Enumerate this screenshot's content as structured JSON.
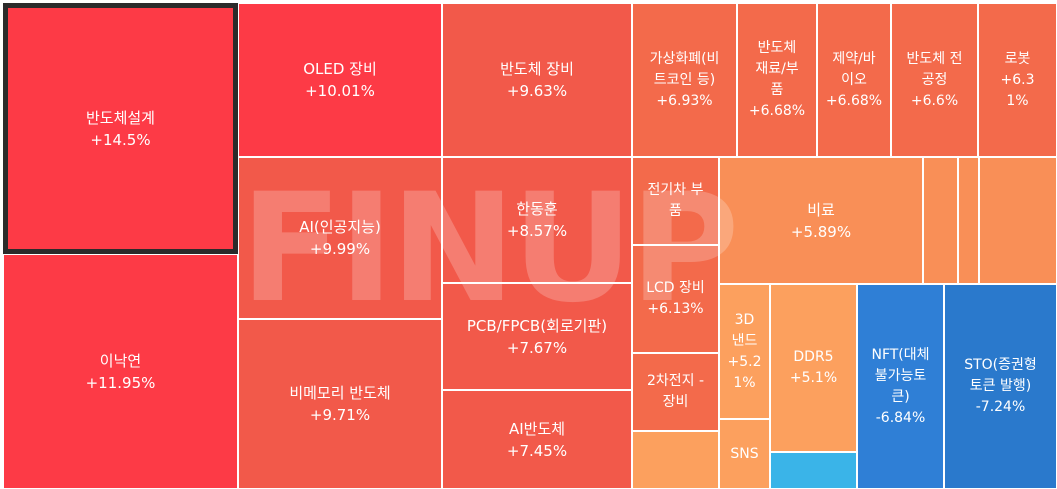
{
  "watermark": "FINUP",
  "colors": {
    "deep_red": "#fd3a46",
    "red": "#f2594a",
    "red_orange": "#f36a4b",
    "orange": "#f98f57",
    "light_orange": "#fca05e",
    "sky_blue": "#3ab4e8",
    "blue": "#2f7fd6",
    "blue_dark": "#2a79cc"
  },
  "chart_data": {
    "type": "treemap",
    "selected": "반도체설계",
    "tiles": [
      {
        "name": "반도체설계",
        "value": 14.5,
        "label": "+14.5%"
      },
      {
        "name": "이낙연",
        "value": 11.95,
        "label": "+11.95%"
      },
      {
        "name": "OLED 장비",
        "value": 10.01,
        "label": "+10.01%"
      },
      {
        "name": "AI(인공지능)",
        "value": 9.99,
        "label": "+9.99%"
      },
      {
        "name": "비메모리 반도체",
        "value": 9.71,
        "label": "+9.71%"
      },
      {
        "name": "반도체 장비",
        "value": 9.63,
        "label": "+9.63%"
      },
      {
        "name": "한동훈",
        "value": 8.57,
        "label": "+8.57%"
      },
      {
        "name": "PCB/FPCB(회로기판)",
        "value": 7.67,
        "label": "+7.67%"
      },
      {
        "name": "AI반도체",
        "value": 7.45,
        "label": "+7.45%"
      },
      {
        "name": "가상화폐(비\n트코인 등)",
        "value": 6.93,
        "label": "+6.93%"
      },
      {
        "name": "반도체\n재료/부\n품",
        "value": 6.68,
        "label": "+6.68%"
      },
      {
        "name": "제약/바\n이오",
        "value": 6.68,
        "label": "+6.68%"
      },
      {
        "name": "반도체 전\n공정",
        "value": 6.6,
        "label": "+6.6%"
      },
      {
        "name": "로봇",
        "value": 6.31,
        "label": "+6.3\n1%"
      },
      {
        "name": "전기차 부\n품",
        "value": null,
        "label": ""
      },
      {
        "name": "LCD 장비",
        "value": 6.13,
        "label": "+6.13%"
      },
      {
        "name": "2차전지 -\n장비",
        "value": null,
        "label": ""
      },
      {
        "name": "비료",
        "value": 5.89,
        "label": "+5.89%"
      },
      {
        "name": "3D\n낸드",
        "value": 5.21,
        "label": "+5.2\n1%"
      },
      {
        "name": "DDR5",
        "value": 5.1,
        "label": "+5.1%"
      },
      {
        "name": "SNS",
        "value": null,
        "label": ""
      },
      {
        "name": "NFT(대체\n불가능토\n큰)",
        "value": -6.84,
        "label": "-6.84%"
      },
      {
        "name": "STO(증권형\n토큰 발행)",
        "value": -7.24,
        "label": "-7.24%"
      },
      {
        "name": "",
        "value": null,
        "label": ""
      },
      {
        "name": "",
        "value": null,
        "label": ""
      },
      {
        "name": "",
        "value": null,
        "label": ""
      },
      {
        "name": "",
        "value": null,
        "label": ""
      },
      {
        "name": "",
        "value": null,
        "label": ""
      }
    ]
  }
}
